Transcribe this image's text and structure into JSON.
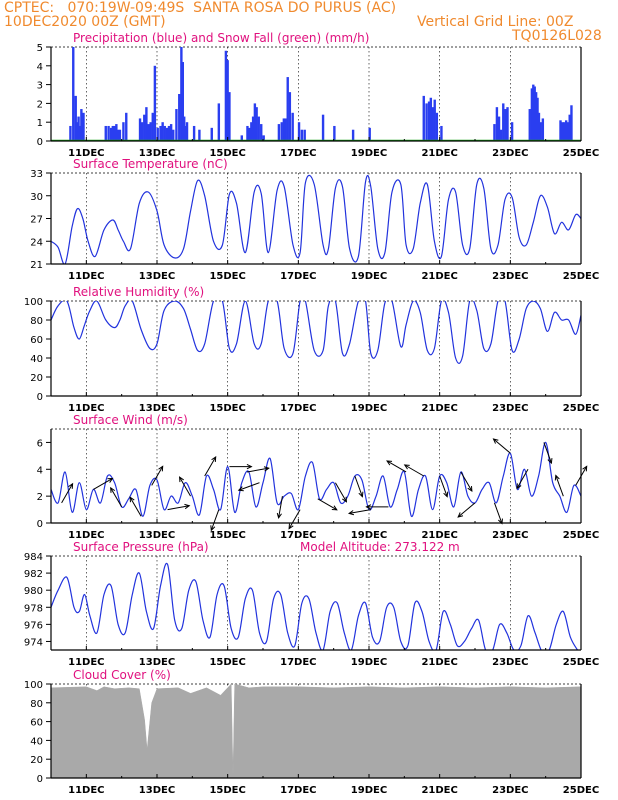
{
  "header": {
    "line1": "CPTEC:   070:19W-09:49S  SANTA ROSA DO PURUS (AC)",
    "line2_left": "10DEC2020 00Z (GMT)",
    "line2_right": "Vertical Grid Line: 00Z",
    "line3_right": "TQ0126L028",
    "text_color": "#f08a2e"
  },
  "colors": {
    "title": "#e0107e",
    "series": "#2233dd",
    "precip": "#2a3ef0",
    "snow": "#18a418",
    "cloud": "#a9a9a9",
    "axis": "#000000"
  },
  "x_axis": {
    "start": "10DEC2020 00Z",
    "end": "25DEC2020 00Z",
    "tick_labels": [
      "11DEC",
      "13DEC",
      "15DEC",
      "17DEC",
      "19DEC",
      "21DEC",
      "23DEC",
      "25DEC"
    ]
  },
  "chart_data": [
    {
      "id": "precip",
      "type": "bar",
      "title": "Precipitation (blue) and Snow Fall (green) (mm/h)",
      "ylim": [
        0,
        5
      ],
      "yticks": [
        0,
        1,
        2,
        3,
        4,
        5
      ],
      "x_unit": "days since 10DEC2020 00Z",
      "x": [
        0.55,
        0.63,
        0.7,
        0.74,
        0.78,
        0.82,
        0.86,
        0.92,
        1.55,
        1.63,
        1.7,
        1.75,
        1.8,
        1.85,
        1.9,
        1.95,
        2.05,
        2.13,
        2.52,
        2.58,
        2.64,
        2.7,
        2.76,
        2.82,
        2.88,
        2.94,
        3.02,
        3.1,
        3.16,
        3.22,
        3.28,
        3.34,
        3.4,
        3.46,
        3.55,
        3.63,
        3.69,
        3.73,
        3.77,
        3.81,
        3.85,
        4.05,
        4.2,
        4.55,
        4.75,
        4.95,
        5.0,
        5.05,
        5.4,
        5.56,
        5.62,
        5.67,
        5.72,
        5.77,
        5.82,
        5.88,
        5.95,
        6.02,
        6.45,
        6.53,
        6.59,
        6.64,
        6.7,
        6.76,
        6.84,
        7.02,
        7.1,
        7.18,
        7.7,
        8.02,
        8.55,
        9.02,
        10.55,
        10.63,
        10.7,
        10.75,
        10.8,
        10.86,
        10.92,
        11.05,
        12.55,
        12.62,
        12.68,
        12.74,
        12.8,
        12.86,
        12.92,
        13.05,
        13.55,
        13.61,
        13.65,
        13.69,
        13.73,
        13.77,
        13.81,
        13.86,
        13.92,
        14.42,
        14.48,
        14.53,
        14.58,
        14.63,
        14.68,
        14.73
      ],
      "values": [
        0.8,
        5.0,
        2.4,
        1.0,
        1.3,
        0.8,
        1.7,
        1.5,
        0.8,
        0.8,
        0.7,
        0.8,
        0.8,
        0.9,
        0.6,
        0.6,
        1.0,
        1.5,
        1.2,
        1.0,
        1.4,
        1.8,
        0.9,
        1.0,
        1.5,
        4.0,
        0.7,
        0.8,
        1.0,
        0.8,
        0.7,
        0.8,
        0.9,
        0.6,
        1.7,
        2.5,
        5.0,
        4.2,
        1.3,
        0.8,
        1.0,
        0.8,
        0.6,
        0.7,
        2.0,
        4.8,
        4.3,
        2.6,
        0.3,
        0.8,
        0.7,
        1.0,
        1.3,
        2.0,
        1.8,
        1.3,
        0.9,
        0.3,
        0.9,
        1.0,
        1.2,
        1.2,
        3.4,
        2.6,
        1.5,
        1.0,
        0.6,
        0.6,
        1.4,
        0.8,
        0.6,
        0.7,
        2.4,
        2.0,
        2.1,
        2.3,
        1.8,
        2.2,
        1.5,
        0.8,
        0.9,
        1.8,
        1.3,
        0.6,
        2.0,
        1.7,
        1.8,
        1.0,
        1.7,
        2.8,
        3.0,
        2.9,
        2.6,
        2.3,
        1.5,
        1.0,
        1.2,
        1.1,
        1.0,
        1.0,
        1.1,
        1.0,
        1.4,
        1.9
      ]
    },
    {
      "id": "temp",
      "type": "line",
      "title": "Surface Temperature (nC)",
      "ylim": [
        21,
        33
      ],
      "yticks": [
        21,
        24,
        27,
        30,
        33
      ],
      "x_unit": "days since 10DEC2020 00Z",
      "x": [
        0.0,
        0.2,
        0.4,
        0.6,
        0.75,
        0.9,
        1.05,
        1.25,
        1.5,
        1.75,
        1.9,
        2.05,
        2.25,
        2.5,
        2.75,
        3.0,
        3.2,
        3.5,
        3.75,
        3.95,
        4.15,
        4.35,
        4.6,
        4.85,
        5.05,
        5.25,
        5.5,
        5.75,
        5.95,
        6.15,
        6.4,
        6.6,
        6.85,
        7.05,
        7.2,
        7.45,
        7.7,
        7.85,
        8.05,
        8.25,
        8.45,
        8.7,
        8.9,
        9.05,
        9.25,
        9.45,
        9.65,
        9.9,
        10.05,
        10.25,
        10.45,
        10.65,
        10.85,
        11.05,
        11.25,
        11.45,
        11.65,
        11.85,
        12.05,
        12.25,
        12.45,
        12.65,
        12.85,
        13.05,
        13.25,
        13.45,
        13.65,
        13.85,
        14.05,
        14.25,
        14.45,
        14.65,
        14.85,
        15.0
      ],
      "values": [
        24.0,
        23.2,
        21.0,
        26.0,
        28.3,
        27.0,
        24.0,
        22.0,
        25.5,
        26.8,
        25.5,
        24.0,
        23.0,
        29.0,
        30.5,
        28.0,
        23.5,
        21.8,
        23.0,
        28.0,
        32.0,
        30.0,
        24.0,
        23.5,
        30.2,
        29.0,
        22.5,
        30.5,
        30.3,
        22.5,
        30.7,
        31.2,
        23.5,
        22.5,
        31.7,
        31.5,
        23.5,
        23.0,
        31.0,
        31.2,
        23.0,
        22.0,
        31.8,
        31.2,
        23.0,
        22.5,
        30.5,
        31.5,
        23.5,
        23.0,
        29.0,
        31.5,
        24.0,
        22.0,
        29.5,
        30.5,
        23.5,
        23.0,
        31.5,
        31.0,
        23.0,
        23.5,
        29.5,
        29.8,
        24.5,
        23.5,
        26.5,
        30.0,
        28.5,
        25.0,
        26.5,
        25.5,
        27.5,
        27.0
      ]
    },
    {
      "id": "rh",
      "type": "line",
      "title": "Relative Humidity (%)",
      "ylim": [
        0,
        100
      ],
      "yticks": [
        0,
        20,
        40,
        60,
        80,
        100
      ],
      "x_unit": "days since 10DEC2020 00Z",
      "x": [
        0.0,
        0.2,
        0.45,
        0.65,
        0.8,
        0.95,
        1.1,
        1.3,
        1.55,
        1.8,
        1.95,
        2.1,
        2.3,
        2.55,
        2.8,
        3.0,
        3.2,
        3.5,
        3.75,
        3.95,
        4.15,
        4.35,
        4.6,
        4.85,
        5.05,
        5.25,
        5.5,
        5.75,
        5.95,
        6.15,
        6.4,
        6.6,
        6.85,
        7.05,
        7.2,
        7.45,
        7.7,
        7.85,
        8.05,
        8.25,
        8.45,
        8.7,
        8.9,
        9.05,
        9.25,
        9.45,
        9.65,
        9.9,
        10.05,
        10.25,
        10.45,
        10.65,
        10.85,
        11.05,
        11.25,
        11.45,
        11.65,
        11.85,
        12.05,
        12.25,
        12.45,
        12.65,
        12.85,
        13.05,
        13.25,
        13.45,
        13.65,
        13.85,
        14.05,
        14.25,
        14.45,
        14.65,
        14.85,
        15.0
      ],
      "values": [
        80,
        95,
        100,
        72,
        60,
        75,
        90,
        100,
        80,
        72,
        80,
        95,
        100,
        70,
        50,
        55,
        90,
        100,
        92,
        70,
        48,
        55,
        100,
        100,
        50,
        55,
        100,
        55,
        55,
        100,
        100,
        50,
        45,
        100,
        100,
        48,
        48,
        95,
        100,
        45,
        55,
        100,
        100,
        45,
        48,
        98,
        100,
        52,
        75,
        100,
        88,
        48,
        50,
        100,
        88,
        40,
        42,
        100,
        90,
        50,
        55,
        100,
        100,
        48,
        60,
        92,
        100,
        92,
        68,
        88,
        80,
        80,
        65,
        85
      ]
    },
    {
      "id": "wind",
      "type": "line",
      "title": "Surface Wind (m/s)",
      "ylim": [
        0,
        7
      ],
      "yticks": [
        0,
        2,
        4,
        6
      ],
      "x_unit": "days since 10DEC2020 00Z",
      "x": [
        0.0,
        0.2,
        0.4,
        0.6,
        0.8,
        1.0,
        1.2,
        1.4,
        1.6,
        1.8,
        2.0,
        2.2,
        2.4,
        2.6,
        2.8,
        3.0,
        3.2,
        3.4,
        3.6,
        3.8,
        4.0,
        4.2,
        4.4,
        4.6,
        4.8,
        5.0,
        5.2,
        5.4,
        5.6,
        5.8,
        6.0,
        6.2,
        6.4,
        6.6,
        6.8,
        7.0,
        7.2,
        7.4,
        7.6,
        7.8,
        8.0,
        8.2,
        8.4,
        8.6,
        8.8,
        9.0,
        9.2,
        9.4,
        9.6,
        9.8,
        10.0,
        10.2,
        10.4,
        10.6,
        10.8,
        11.0,
        11.2,
        11.4,
        11.6,
        11.8,
        12.0,
        12.2,
        12.4,
        12.6,
        12.8,
        13.0,
        13.2,
        13.4,
        13.6,
        13.8,
        14.0,
        14.2,
        14.4,
        14.6,
        14.8,
        15.0
      ],
      "values": [
        2.5,
        1.5,
        3.8,
        0.8,
        3.0,
        1.0,
        2.5,
        1.5,
        3.5,
        3.0,
        1.2,
        1.8,
        2.5,
        0.5,
        2.8,
        3.2,
        1.0,
        2.0,
        1.5,
        3.0,
        2.0,
        0.6,
        3.5,
        2.5,
        1.0,
        4.2,
        0.8,
        3.0,
        3.8,
        1.2,
        3.0,
        4.8,
        1.5,
        2.0,
        2.2,
        1.0,
        3.5,
        4.5,
        1.8,
        2.5,
        3.0,
        1.5,
        2.0,
        3.5,
        3.2,
        1.0,
        2.0,
        3.5,
        1.2,
        2.5,
        3.8,
        0.5,
        2.5,
        3.5,
        1.0,
        3.5,
        3.0,
        1.2,
        3.8,
        2.0,
        1.5,
        2.5,
        3.0,
        1.5,
        3.5,
        5.2,
        2.5,
        4.0,
        2.0,
        3.5,
        6.0,
        3.0,
        2.0,
        0.8,
        2.8,
        2.0
      ],
      "arrow_x": [
        0.3,
        1.2,
        2.0,
        2.55,
        2.85,
        3.3,
        3.95,
        4.35,
        4.75,
        5.05,
        5.55,
        5.9,
        6.55,
        7.05,
        7.55,
        8.05,
        8.6,
        9.05,
        9.55,
        10.05,
        10.55,
        11.0,
        11.6,
        12.0,
        12.55,
        13.0,
        13.5,
        13.95,
        14.5,
        14.85
      ],
      "arrow_dir_deg": [
        30,
        60,
        330,
        330,
        30,
        80,
        330,
        30,
        200,
        90,
        80,
        250,
        190,
        210,
        120,
        150,
        160,
        260,
        270,
        300,
        300,
        160,
        150,
        230,
        160,
        310,
        210,
        160,
        340,
        30
      ]
    },
    {
      "id": "pressure",
      "type": "line",
      "title": "Surface Pressure (hPa)",
      "annotation": "Model Altitude: 273.122 m",
      "ylim": [
        973,
        984
      ],
      "yticks": [
        974,
        976,
        978,
        980,
        982,
        984
      ],
      "x_unit": "days since 10DEC2020 00Z",
      "x": [
        0.0,
        0.2,
        0.45,
        0.65,
        0.8,
        0.95,
        1.1,
        1.3,
        1.5,
        1.7,
        1.9,
        2.1,
        2.3,
        2.5,
        2.7,
        2.9,
        3.1,
        3.3,
        3.5,
        3.7,
        3.9,
        4.1,
        4.3,
        4.5,
        4.7,
        4.9,
        5.1,
        5.3,
        5.5,
        5.7,
        5.9,
        6.1,
        6.3,
        6.5,
        6.7,
        6.9,
        7.1,
        7.3,
        7.5,
        7.7,
        7.9,
        8.1,
        8.3,
        8.5,
        8.7,
        8.9,
        9.1,
        9.3,
        9.5,
        9.7,
        9.9,
        10.1,
        10.3,
        10.5,
        10.7,
        10.9,
        11.1,
        11.3,
        11.5,
        11.7,
        11.9,
        12.1,
        12.3,
        12.5,
        12.7,
        12.9,
        13.1,
        13.3,
        13.5,
        13.7,
        13.9,
        14.1,
        14.3,
        14.5,
        14.7,
        14.9,
        15.0
      ],
      "values": [
        978.0,
        980.0,
        981.5,
        978.0,
        977.5,
        979.5,
        977.0,
        975.0,
        979.5,
        980.5,
        976.0,
        975.0,
        979.5,
        982.0,
        977.5,
        975.5,
        980.5,
        983.0,
        976.5,
        975.5,
        980.0,
        981.0,
        976.5,
        974.5,
        979.5,
        980.5,
        975.5,
        974.5,
        979.0,
        980.0,
        975.0,
        974.0,
        979.0,
        979.5,
        975.0,
        973.5,
        978.5,
        979.0,
        975.0,
        973.0,
        977.5,
        978.5,
        975.0,
        973.0,
        977.0,
        978.5,
        974.5,
        974.0,
        978.0,
        978.0,
        974.0,
        973.5,
        978.5,
        977.5,
        974.0,
        973.0,
        977.5,
        976.0,
        973.5,
        974.0,
        975.5,
        976.5,
        973.0,
        973.0,
        976.0,
        975.0,
        973.0,
        973.5,
        977.0,
        975.0,
        972.8,
        973.0,
        976.0,
        977.5,
        974.5,
        973.0,
        972.5
      ]
    },
    {
      "id": "cloud",
      "type": "area",
      "title": "Cloud Cover (%)",
      "ylim": [
        0,
        100
      ],
      "yticks": [
        0,
        20,
        40,
        60,
        80,
        100
      ],
      "x_unit": "days since 10DEC2020 00Z",
      "x": [
        0.0,
        1.0,
        1.3,
        1.5,
        1.8,
        2.2,
        2.5,
        2.65,
        2.72,
        2.85,
        3.0,
        3.6,
        3.95,
        4.4,
        4.8,
        5.1,
        5.15,
        5.2,
        5.6,
        6.0,
        7.0,
        8.0,
        9.0,
        10.0,
        11.0,
        12.0,
        13.0,
        14.0,
        15.0
      ],
      "values": [
        96,
        97,
        93,
        97,
        95,
        96,
        95,
        62,
        30,
        80,
        95,
        96,
        90,
        96,
        88,
        100,
        3,
        100,
        96,
        97,
        97,
        96,
        97,
        96,
        97,
        96,
        97,
        96,
        97
      ]
    }
  ]
}
